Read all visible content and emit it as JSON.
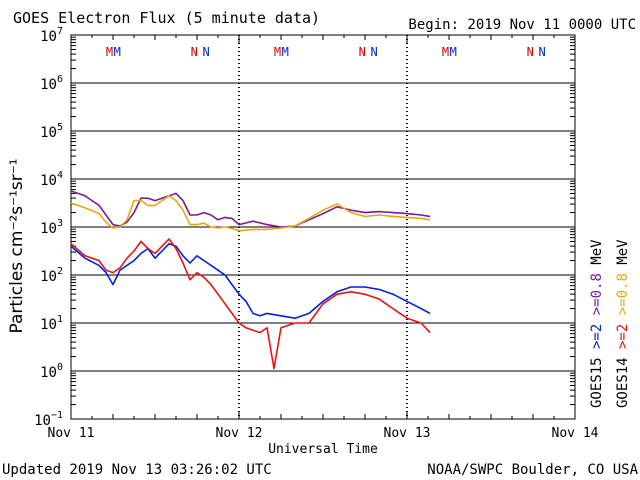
{
  "chart_data": {
    "type": "line",
    "title": "GOES Electron Flux (5 minute data)",
    "begin_label": "Begin: 2019 Nov 11 0000 UTC",
    "xlabel": "Universal Time",
    "ylabel": "Particles cm⁻²s⁻¹sr⁻¹",
    "x_unit": "hours since 2019 Nov 11 0000 UTC",
    "xlim": [
      0,
      72
    ],
    "ylim_log10": [
      -1,
      7
    ],
    "y_scale": "log",
    "x_ticks": [
      {
        "value": 0,
        "label": "Nov 11"
      },
      {
        "value": 24,
        "label": "Nov 12"
      },
      {
        "value": 48,
        "label": "Nov 13"
      },
      {
        "value": 72,
        "label": "Nov 14"
      }
    ],
    "y_ticks": [
      {
        "exp": 7,
        "base": "10",
        "sup": "7"
      },
      {
        "exp": 6,
        "base": "10",
        "sup": "6"
      },
      {
        "exp": 5,
        "base": "10",
        "sup": "5"
      },
      {
        "exp": 4,
        "base": "10",
        "sup": "4"
      },
      {
        "exp": 3,
        "base": "10",
        "sup": "3"
      },
      {
        "exp": 2,
        "base": "10",
        "sup": "2"
      },
      {
        "exp": 1,
        "base": "10",
        "sup": "1"
      },
      {
        "exp": 0,
        "base": "10",
        "sup": "0"
      },
      {
        "exp": -1,
        "base": "10",
        "sup": "−1"
      }
    ],
    "threshold_log10": 3,
    "legend": [
      {
        "text": "GOES15",
        "color": "#000000"
      },
      {
        "text": ">=2",
        "color": "#0022dd"
      },
      {
        "text": ">=0.8",
        "color": "#7a1aa0"
      },
      {
        "text": "MeV",
        "color": "#000000"
      },
      {
        "text": "GOES14",
        "color": "#000000"
      },
      {
        "text": ">=2",
        "color": "#ee1111"
      },
      {
        "text": ">=0.8",
        "color": "#e8a80c"
      },
      {
        "text": "MeV",
        "color": "#000000"
      }
    ],
    "markers": [
      {
        "x": 5.5,
        "text": "M",
        "color": "#dd0000"
      },
      {
        "x": 6.6,
        "text": "M",
        "color": "#0022dd"
      },
      {
        "x": 17.6,
        "text": "N",
        "color": "#dd0000"
      },
      {
        "x": 19.3,
        "text": "N",
        "color": "#0022dd"
      },
      {
        "x": 29.5,
        "text": "M",
        "color": "#dd0000"
      },
      {
        "x": 30.6,
        "text": "M",
        "color": "#0022dd"
      },
      {
        "x": 41.6,
        "text": "N",
        "color": "#dd0000"
      },
      {
        "x": 43.3,
        "text": "N",
        "color": "#0022dd"
      },
      {
        "x": 53.5,
        "text": "M",
        "color": "#dd0000"
      },
      {
        "x": 54.6,
        "text": "M",
        "color": "#0022dd"
      },
      {
        "x": 65.6,
        "text": "N",
        "color": "#dd0000"
      },
      {
        "x": 67.3,
        "text": "N",
        "color": "#0022dd"
      }
    ],
    "series": [
      {
        "name": "GOES15 >=0.8 MeV",
        "color": "#7a1aa0",
        "x": [
          0,
          2,
          4,
          5,
          6,
          7,
          8,
          9,
          10,
          11,
          12,
          13,
          14,
          15,
          16,
          17,
          18,
          19,
          20,
          21,
          22,
          23,
          24,
          26,
          28,
          30,
          32,
          34,
          36,
          38,
          40,
          42,
          44,
          46,
          48,
          50,
          51.3
        ],
        "log10y": [
          3.75,
          3.65,
          3.45,
          3.25,
          3.05,
          3.02,
          3.1,
          3.3,
          3.6,
          3.6,
          3.55,
          3.6,
          3.65,
          3.7,
          3.55,
          3.25,
          3.25,
          3.3,
          3.25,
          3.15,
          3.2,
          3.18,
          3.05,
          3.12,
          3.05,
          3.0,
          3.02,
          3.15,
          3.28,
          3.42,
          3.35,
          3.3,
          3.32,
          3.3,
          3.28,
          3.25,
          3.22
        ]
      },
      {
        "name": "GOES14 >=0.8 MeV",
        "color": "#e8a80c",
        "x": [
          0,
          2,
          4,
          5,
          6,
          7,
          8,
          9,
          10,
          11,
          12,
          13,
          14,
          15,
          16,
          17,
          18,
          19,
          20,
          21,
          22,
          23,
          24,
          26,
          28,
          30,
          32,
          34,
          36,
          38,
          40,
          42,
          44,
          46,
          48,
          50,
          51.3
        ],
        "log10y": [
          3.5,
          3.4,
          3.28,
          3.1,
          2.98,
          3.0,
          3.15,
          3.55,
          3.55,
          3.45,
          3.45,
          3.55,
          3.65,
          3.55,
          3.35,
          3.05,
          3.05,
          3.08,
          3.0,
          2.98,
          3.0,
          2.97,
          2.92,
          2.95,
          2.95,
          2.98,
          3.02,
          3.18,
          3.35,
          3.48,
          3.3,
          3.22,
          3.25,
          3.22,
          3.2,
          3.18,
          3.15
        ]
      },
      {
        "name": "GOES15 >=2 MeV",
        "color": "#0022dd",
        "x": [
          0,
          2,
          4,
          5,
          6,
          7,
          8,
          9,
          10,
          11,
          12,
          13,
          14,
          15,
          16,
          17,
          18,
          19,
          20,
          21,
          22,
          23,
          24,
          25,
          26,
          27,
          28,
          30,
          32,
          34,
          36,
          38,
          40,
          42,
          44,
          46,
          48,
          50,
          51.3
        ],
        "log10y": [
          2.6,
          2.35,
          2.2,
          2.05,
          1.8,
          2.1,
          2.2,
          2.3,
          2.45,
          2.55,
          2.35,
          2.5,
          2.65,
          2.6,
          2.4,
          2.25,
          2.4,
          2.3,
          2.2,
          2.1,
          2.0,
          1.8,
          1.6,
          1.45,
          1.2,
          1.15,
          1.2,
          1.15,
          1.1,
          1.2,
          1.45,
          1.65,
          1.75,
          1.75,
          1.7,
          1.6,
          1.45,
          1.3,
          1.2
        ]
      },
      {
        "name": "GOES14 >=2 MeV",
        "color": "#ee1111",
        "x": [
          0,
          2,
          4,
          5,
          6,
          7,
          8,
          9,
          10,
          11,
          12,
          13,
          14,
          15,
          16,
          17,
          18,
          19,
          20,
          21,
          22,
          23,
          24,
          25,
          26,
          27,
          28,
          29,
          30,
          32,
          34,
          36,
          38,
          40,
          42,
          44,
          46,
          48,
          50,
          51.3
        ],
        "log10y": [
          2.65,
          2.4,
          2.3,
          2.1,
          2.05,
          2.15,
          2.35,
          2.5,
          2.7,
          2.55,
          2.45,
          2.6,
          2.75,
          2.55,
          2.25,
          1.9,
          2.05,
          1.95,
          1.8,
          1.6,
          1.4,
          1.2,
          1.0,
          0.9,
          0.85,
          0.8,
          0.9,
          0.05,
          0.9,
          1.0,
          1.0,
          1.4,
          1.6,
          1.65,
          1.6,
          1.5,
          1.3,
          1.1,
          1.0,
          0.8
        ]
      }
    ]
  },
  "footer": {
    "updated": "Updated 2019 Nov 13 03:26:02 UTC",
    "credit": "NOAA/SWPC Boulder, CO USA"
  }
}
